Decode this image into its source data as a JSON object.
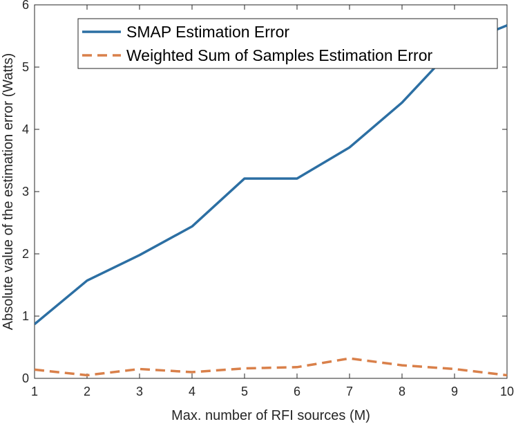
{
  "chart_data": {
    "type": "line",
    "xlabel": "Max. number of RFI sources (M)",
    "ylabel": "Absolute value of the estimation error (Watts)",
    "xlim": [
      1,
      10
    ],
    "ylim": [
      0,
      6
    ],
    "x_ticks": [
      "1",
      "2",
      "3",
      "4",
      "5",
      "6",
      "7",
      "8",
      "9",
      "10"
    ],
    "y_ticks": [
      "0",
      "1",
      "2",
      "3",
      "4",
      "5",
      "6"
    ],
    "x": [
      1,
      2,
      3,
      4,
      5,
      6,
      7,
      8,
      9,
      10
    ],
    "series": [
      {
        "name": "SMAP Estimation Error",
        "values": [
          0.87,
          1.57,
          1.98,
          2.44,
          3.21,
          3.21,
          3.71,
          4.43,
          5.33,
          5.67
        ],
        "color": "#2c6fa3",
        "style": "solid"
      },
      {
        "name": "Weighted Sum of Samples Estimation Error",
        "values": [
          0.14,
          0.05,
          0.15,
          0.1,
          0.16,
          0.18,
          0.32,
          0.21,
          0.15,
          0.05
        ],
        "color": "#d9804a",
        "style": "dashed"
      }
    ],
    "legend_position": "top-right",
    "grid": false
  }
}
